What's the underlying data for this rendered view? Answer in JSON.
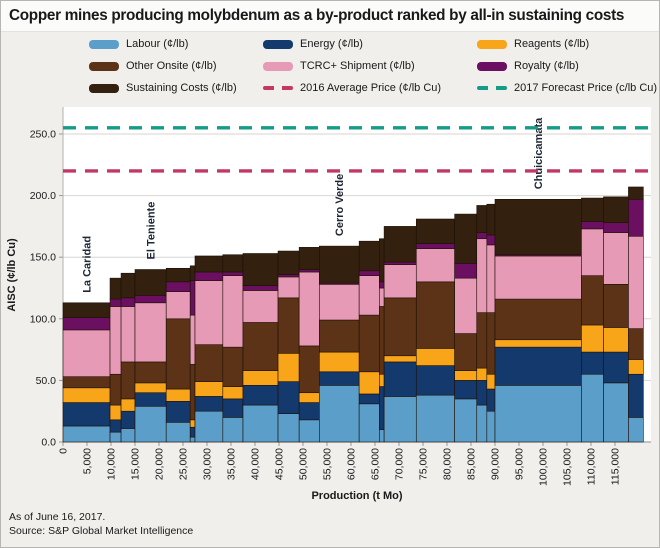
{
  "title": "Copper mines producing molybdenum as a by-product ranked by all-in sustaining costs",
  "legend": {
    "items": [
      {
        "label": "Labour (¢/lb)",
        "color": "#5b9ec9",
        "dashed": false
      },
      {
        "label": "Energy (¢/lb)",
        "color": "#14396d",
        "dashed": false
      },
      {
        "label": "Reagents (¢/lb)",
        "color": "#f9a51a",
        "dashed": false
      },
      {
        "label": "Other Onsite (¢/lb)",
        "color": "#5c3317",
        "dashed": false
      },
      {
        "label": "TCRC+ Shipment (¢/lb)",
        "color": "#e79ab5",
        "dashed": false
      },
      {
        "label": "Royalty (¢/lb)",
        "color": "#6b1060",
        "dashed": false
      },
      {
        "label": "Sustaining Costs (¢/lb)",
        "color": "#33200e",
        "dashed": false
      },
      {
        "label": "2016 Average Price (¢/lb Cu)",
        "color": "#c43767",
        "dashed": true
      },
      {
        "label": "2017 Forecast Price (c/lb Cu)",
        "color": "#169b87",
        "dashed": true
      }
    ]
  },
  "chart_data": {
    "type": "bar",
    "subtype": "variable-width-stacked-cost-curve",
    "title": "Copper mines producing molybdenum as a by-product ranked by all-in sustaining costs",
    "xlabel": "Production (t Mo)",
    "ylabel": "AISC (¢/lb Cu)",
    "ylim": [
      0,
      272
    ],
    "y_ticks": [
      0,
      50,
      100,
      150,
      200,
      250
    ],
    "x_ticks": [
      0,
      5000,
      10000,
      15000,
      20000,
      25000,
      30000,
      35000,
      40000,
      45000,
      50000,
      55000,
      60000,
      65000,
      70000,
      75000,
      80000,
      85000,
      90000,
      95000,
      100000,
      105000,
      110000,
      115000
    ],
    "grid": true,
    "components": [
      {
        "key": "labour",
        "label": "Labour (¢/lb)",
        "color": "#5b9ec9"
      },
      {
        "key": "energy",
        "label": "Energy (¢/lb)",
        "color": "#14396d"
      },
      {
        "key": "reagents",
        "label": "Reagents (¢/lb)",
        "color": "#f9a51a"
      },
      {
        "key": "other_onsite",
        "label": "Other Onsite (¢/lb)",
        "color": "#5c3317"
      },
      {
        "key": "tcrc_shipment",
        "label": "TCRC+ Shipment (¢/lb)",
        "color": "#e79ab5"
      },
      {
        "key": "royalty",
        "label": "Royalty (¢/lb)",
        "color": "#6b1060"
      },
      {
        "key": "sustaining",
        "label": "Sustaining Costs (¢/lb)",
        "color": "#33200e"
      }
    ],
    "reference_lines": [
      {
        "label": "2016 Average Price (¢/lb Cu)",
        "value": 220,
        "color": "#c43767"
      },
      {
        "label": "2017 Forecast Price (c/lb Cu)",
        "value": 255,
        "color": "#169b87"
      }
    ],
    "mines": [
      {
        "name": "La Caridad",
        "production_t": 9800,
        "costs": {
          "labour": 13,
          "energy": 19,
          "reagents": 12,
          "other_onsite": 9,
          "tcrc_shipment": 38,
          "royalty": 10,
          "sustaining": 12
        }
      },
      {
        "name": "",
        "production_t": 2300,
        "costs": {
          "labour": 8,
          "energy": 10,
          "reagents": 12,
          "other_onsite": 25,
          "tcrc_shipment": 55,
          "royalty": 6,
          "sustaining": 17
        }
      },
      {
        "name": "",
        "production_t": 2900,
        "costs": {
          "labour": 11,
          "energy": 14,
          "reagents": 10,
          "other_onsite": 30,
          "tcrc_shipment": 45,
          "royalty": 7,
          "sustaining": 20
        }
      },
      {
        "name": "El Teniente",
        "production_t": 6500,
        "costs": {
          "labour": 29,
          "energy": 11,
          "reagents": 8,
          "other_onsite": 17,
          "tcrc_shipment": 48,
          "royalty": 6,
          "sustaining": 21
        }
      },
      {
        "name": "",
        "production_t": 5000,
        "costs": {
          "labour": 16,
          "energy": 17,
          "reagents": 10,
          "other_onsite": 57,
          "tcrc_shipment": 22,
          "royalty": 8,
          "sustaining": 11
        }
      },
      {
        "name": "",
        "production_t": 1000,
        "costs": {
          "labour": 4,
          "energy": 8,
          "reagents": 6,
          "other_onsite": 45,
          "tcrc_shipment": 40,
          "royalty": 28,
          "sustaining": 12
        }
      },
      {
        "name": "",
        "production_t": 5800,
        "costs": {
          "labour": 25,
          "energy": 12,
          "reagents": 12,
          "other_onsite": 30,
          "tcrc_shipment": 52,
          "royalty": 7,
          "sustaining": 13
        }
      },
      {
        "name": "",
        "production_t": 4200,
        "costs": {
          "labour": 20,
          "energy": 15,
          "reagents": 10,
          "other_onsite": 32,
          "tcrc_shipment": 58,
          "royalty": 3,
          "sustaining": 14
        }
      },
      {
        "name": "",
        "production_t": 7300,
        "costs": {
          "labour": 30,
          "energy": 16,
          "reagents": 12,
          "other_onsite": 39,
          "tcrc_shipment": 26,
          "royalty": 4,
          "sustaining": 26
        }
      },
      {
        "name": "",
        "production_t": 4400,
        "costs": {
          "labour": 23,
          "energy": 26,
          "reagents": 23,
          "other_onsite": 45,
          "tcrc_shipment": 17,
          "royalty": 2,
          "sustaining": 19
        }
      },
      {
        "name": "",
        "production_t": 4200,
        "costs": {
          "labour": 18,
          "energy": 14,
          "reagents": 8,
          "other_onsite": 38,
          "tcrc_shipment": 60,
          "royalty": 2,
          "sustaining": 18
        }
      },
      {
        "name": "Cerro Verde",
        "production_t": 8300,
        "costs": {
          "labour": 46,
          "energy": 11,
          "reagents": 16,
          "other_onsite": 26,
          "tcrc_shipment": 29,
          "royalty": 1,
          "sustaining": 30
        }
      },
      {
        "name": "",
        "production_t": 4200,
        "costs": {
          "labour": 31,
          "energy": 8,
          "reagents": 18,
          "other_onsite": 46,
          "tcrc_shipment": 32,
          "royalty": 4,
          "sustaining": 24
        }
      },
      {
        "name": "",
        "production_t": 1000,
        "costs": {
          "labour": 10,
          "energy": 35,
          "reagents": 10,
          "other_onsite": 55,
          "tcrc_shipment": 15,
          "royalty": 5,
          "sustaining": 35
        }
      },
      {
        "name": "",
        "production_t": 6700,
        "costs": {
          "labour": 37,
          "energy": 28,
          "reagents": 5,
          "other_onsite": 47,
          "tcrc_shipment": 27,
          "royalty": 2,
          "sustaining": 29
        }
      },
      {
        "name": "",
        "production_t": 8000,
        "costs": {
          "labour": 38,
          "energy": 24,
          "reagents": 14,
          "other_onsite": 54,
          "tcrc_shipment": 27,
          "royalty": 4,
          "sustaining": 20
        }
      },
      {
        "name": "",
        "production_t": 4600,
        "costs": {
          "labour": 35,
          "energy": 15,
          "reagents": 8,
          "other_onsite": 30,
          "tcrc_shipment": 45,
          "royalty": 12,
          "sustaining": 40
        }
      },
      {
        "name": "",
        "production_t": 2100,
        "costs": {
          "labour": 30,
          "energy": 20,
          "reagents": 10,
          "other_onsite": 45,
          "tcrc_shipment": 60,
          "royalty": 5,
          "sustaining": 22
        }
      },
      {
        "name": "",
        "production_t": 1700,
        "costs": {
          "labour": 25,
          "energy": 18,
          "reagents": 12,
          "other_onsite": 50,
          "tcrc_shipment": 55,
          "royalty": 8,
          "sustaining": 25
        }
      },
      {
        "name": "Chuicicamata",
        "production_t": 18000,
        "costs": {
          "labour": 46,
          "energy": 31,
          "reagents": 6,
          "other_onsite": 33,
          "tcrc_shipment": 35,
          "royalty": 1,
          "sustaining": 45
        }
      },
      {
        "name": "",
        "production_t": 4600,
        "costs": {
          "labour": 55,
          "energy": 18,
          "reagents": 22,
          "other_onsite": 40,
          "tcrc_shipment": 38,
          "royalty": 6,
          "sustaining": 19
        }
      },
      {
        "name": "",
        "production_t": 5200,
        "costs": {
          "labour": 48,
          "energy": 25,
          "reagents": 20,
          "other_onsite": 35,
          "tcrc_shipment": 42,
          "royalty": 8,
          "sustaining": 21
        }
      },
      {
        "name": "",
        "production_t": 3100,
        "costs": {
          "labour": 20,
          "energy": 35,
          "reagents": 12,
          "other_onsite": 25,
          "tcrc_shipment": 75,
          "royalty": 30,
          "sustaining": 10
        }
      }
    ]
  },
  "footer": {
    "as_of": "As of June 16, 2017.",
    "source": "Source: S&P Global Market Intelligence"
  }
}
